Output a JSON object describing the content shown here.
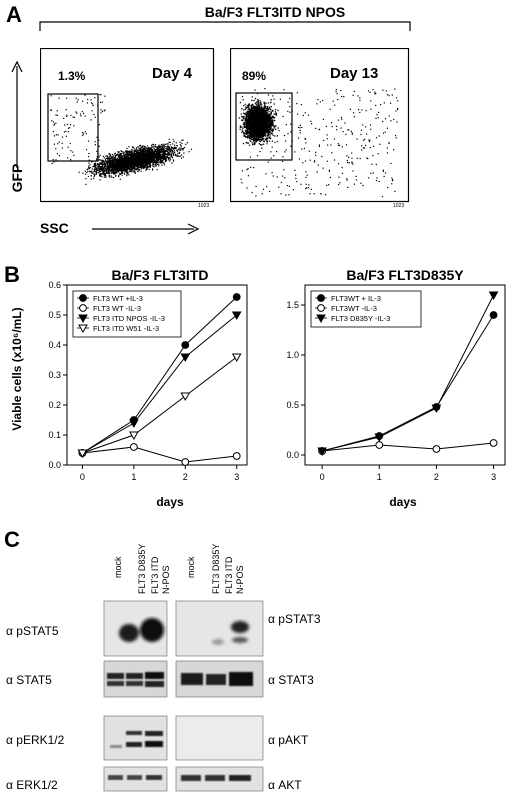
{
  "panel_a": {
    "letter": "A",
    "title": "Ba/F3 FLT3ITD NPOS",
    "y_axis": "GFP",
    "x_axis": "SSC",
    "plots": [
      {
        "day": "Day 4",
        "gate_pct": "1.3%",
        "x_tick": "1023"
      },
      {
        "day": "Day 13",
        "gate_pct": "89%",
        "x_tick": "1023"
      }
    ]
  },
  "panel_b": {
    "letter": "B",
    "y_label": "Viable cells (x10⁶/mL)",
    "x_label": "days"
  },
  "chart_data": [
    {
      "type": "line",
      "title": "Ba/F3 FLT3ITD",
      "xlabel": "days",
      "ylabel": "Viable cells (x10⁶/mL)",
      "x": [
        0,
        1,
        2,
        3
      ],
      "xlim": [
        -0.3,
        3.2
      ],
      "ylim": [
        0,
        0.6
      ],
      "yticks": [
        0.0,
        0.1,
        0.2,
        0.3,
        0.4,
        0.5,
        0.6
      ],
      "legend_position": "top-left",
      "series": [
        {
          "name": "FLT3 WT +IL-3",
          "marker": "filled-circle",
          "values": [
            0.04,
            0.15,
            0.4,
            0.56
          ]
        },
        {
          "name": "FLT3 WT -IL-3",
          "marker": "open-circle",
          "values": [
            0.04,
            0.06,
            0.01,
            0.03
          ]
        },
        {
          "name": "FLT3 ITD NPOS -IL-3",
          "marker": "filled-triangle-down",
          "values": [
            0.04,
            0.14,
            0.36,
            0.5
          ]
        },
        {
          "name": "FLT3 ITD W51 -IL-3",
          "marker": "open-triangle-down",
          "values": [
            0.04,
            0.1,
            0.23,
            0.36
          ]
        }
      ]
    },
    {
      "type": "line",
      "title": "Ba/F3 FLT3D835Y",
      "xlabel": "days",
      "ylabel": "",
      "x": [
        0,
        1,
        2,
        3
      ],
      "xlim": [
        -0.3,
        3.2
      ],
      "ylim": [
        -0.1,
        1.7
      ],
      "yticks": [
        0.0,
        0.5,
        1.0,
        1.5
      ],
      "legend_position": "top-left",
      "series": [
        {
          "name": "FLT3WT + IL-3",
          "marker": "filled-circle",
          "values": [
            0.04,
            0.19,
            0.48,
            1.4
          ]
        },
        {
          "name": "FLT3WT -IL-3",
          "marker": "open-circle",
          "values": [
            0.04,
            0.1,
            0.06,
            0.12
          ]
        },
        {
          "name": "FLT3 D835Y -IL-3",
          "marker": "filled-triangle-down",
          "values": [
            0.04,
            0.18,
            0.47,
            1.6
          ]
        }
      ]
    }
  ],
  "panel_c": {
    "letter": "C",
    "lanes": [
      "mock",
      "FLT3 D835Y",
      "FLT3 ITD N-POS"
    ],
    "left_labels": [
      "α pSTAT5",
      "α STAT5",
      "α pERK1/2",
      "α ERK1/2"
    ],
    "right_labels": [
      "α pSTAT3",
      "α STAT3",
      "α pAKT",
      "α AKT"
    ]
  }
}
